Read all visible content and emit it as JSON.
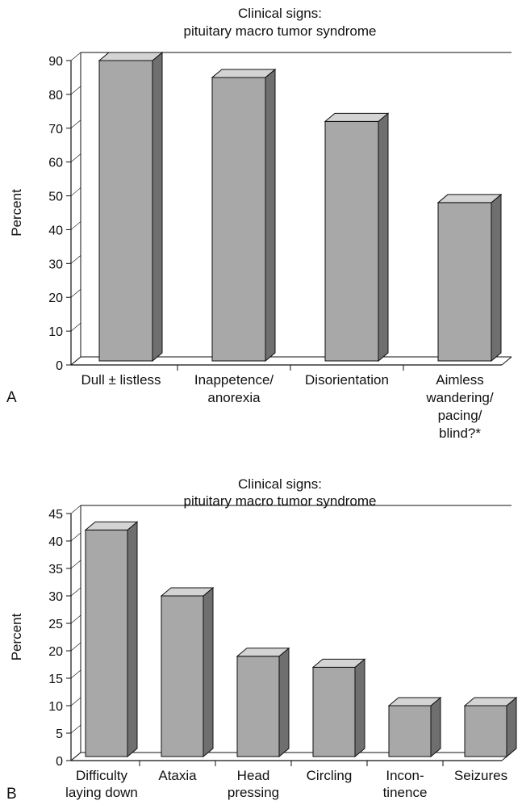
{
  "chart_data": [
    {
      "panel_label": "A",
      "type": "bar",
      "title": "Clinical signs:",
      "subtitle": "pituitary macro tumor syndrome",
      "ylabel": "Percent",
      "xlabel": "",
      "ylim": [
        0,
        90
      ],
      "yticks": [
        0,
        10,
        20,
        30,
        40,
        50,
        60,
        70,
        80,
        90
      ],
      "categories": [
        [
          "Dull ± listless"
        ],
        [
          "Inappetence/",
          "anorexia"
        ],
        [
          "Disorientation"
        ],
        [
          "Aimless",
          "wandering/",
          "pacing/",
          "blind?*"
        ]
      ],
      "values": [
        90,
        85,
        72,
        48
      ],
      "grid": false,
      "style": "3d-bar"
    },
    {
      "panel_label": "B",
      "type": "bar",
      "title": "Clinical signs:",
      "subtitle": "pituitary macro tumor syndrome",
      "ylabel": "Percent",
      "xlabel": "",
      "ylim": [
        0,
        45
      ],
      "yticks": [
        0,
        5,
        10,
        15,
        20,
        25,
        30,
        35,
        40,
        45
      ],
      "categories": [
        [
          "Difficulty",
          "laying down"
        ],
        [
          "Ataxia"
        ],
        [
          "Head",
          "pressing"
        ],
        [
          "Circling"
        ],
        [
          "Incon-",
          "tinence"
        ],
        [
          "Seizures"
        ]
      ],
      "values": [
        42,
        30,
        19,
        17,
        10,
        10
      ],
      "grid": false,
      "style": "3d-bar"
    }
  ],
  "colors": {
    "bar_front": "#a8a8a8",
    "bar_side": "#6f6f6f",
    "bar_top": "#d4d4d4",
    "axis": "#111111"
  }
}
